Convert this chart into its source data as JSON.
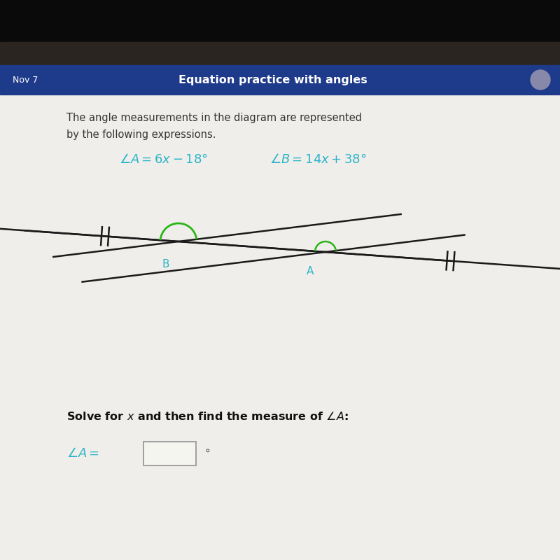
{
  "header_color": "#1e3a8a",
  "header_text": "Equation practice with angles",
  "header_text_color": "#ffffff",
  "date_text": "Nov 7",
  "date_color": "#ffffff",
  "body_bg_color": "#e8e6e0",
  "problem_text_line1": "The angle measurements in the diagram are represented",
  "problem_text_line2": "by the following expressions.",
  "angle_color": "#2ab5c8",
  "line_color": "#1a1a1a",
  "arc_color": "#2ab518",
  "label_color": "#2ab5c8",
  "solve_bold_color": "#111111",
  "answer_label_color": "#2ab5c8",
  "top_dark_color": "#111111",
  "top_dark2_color": "#222222"
}
